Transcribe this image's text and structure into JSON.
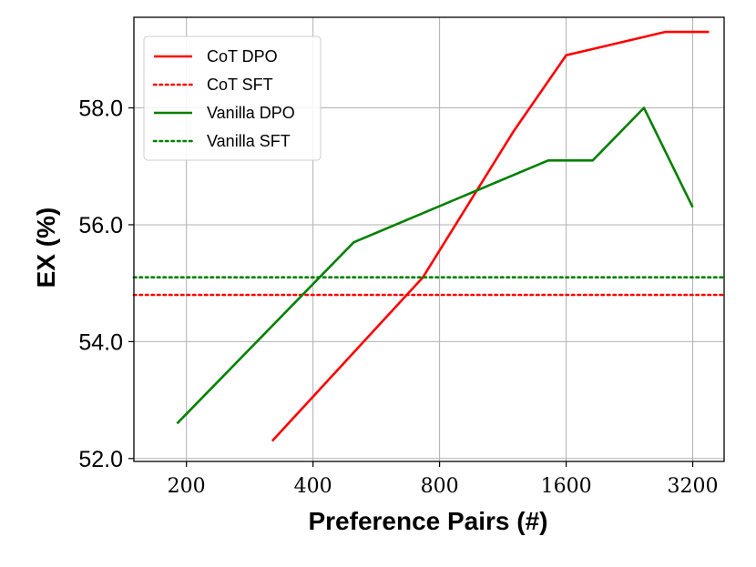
{
  "chart_data": {
    "type": "line",
    "xlabel": "Preference Pairs (#)",
    "ylabel": "EX (%)",
    "x_scale": "log2",
    "xlim": [
      150,
      3800
    ],
    "ylim": [
      51.95,
      59.55
    ],
    "x_ticks": [
      {
        "value": 200,
        "label": "200"
      },
      {
        "value": 400,
        "label": "400"
      },
      {
        "value": 800,
        "label": "800"
      },
      {
        "value": 1600,
        "label": "1600"
      },
      {
        "value": 3200,
        "label": "3200"
      }
    ],
    "y_ticks": [
      {
        "value": 52,
        "label": "52.0"
      },
      {
        "value": 54,
        "label": "54.0"
      },
      {
        "value": 56,
        "label": "56.0"
      },
      {
        "value": 58,
        "label": "58.0"
      }
    ],
    "grid": true,
    "legend_position": "top-left",
    "series": [
      {
        "name": "CoT DPO",
        "color": "#ff0000",
        "style": "solid",
        "points": [
          {
            "x": 320,
            "y": 52.3
          },
          {
            "x": 730,
            "y": 55.1
          },
          {
            "x": 1200,
            "y": 57.6
          },
          {
            "x": 1600,
            "y": 58.9
          },
          {
            "x": 2750,
            "y": 59.3
          },
          {
            "x": 3500,
            "y": 59.3
          }
        ]
      },
      {
        "name": "CoT SFT",
        "color": "#ff0000",
        "style": "dotted",
        "hline": 54.8
      },
      {
        "name": "Vanilla DPO",
        "color": "#008000",
        "style": "solid",
        "points": [
          {
            "x": 190,
            "y": 52.6
          },
          {
            "x": 500,
            "y": 55.7
          },
          {
            "x": 1450,
            "y": 57.1
          },
          {
            "x": 1850,
            "y": 57.1
          },
          {
            "x": 2450,
            "y": 58.0
          },
          {
            "x": 3200,
            "y": 56.3
          }
        ]
      },
      {
        "name": "Vanilla SFT",
        "color": "#008000",
        "style": "dotted",
        "hline": 55.1
      }
    ]
  }
}
